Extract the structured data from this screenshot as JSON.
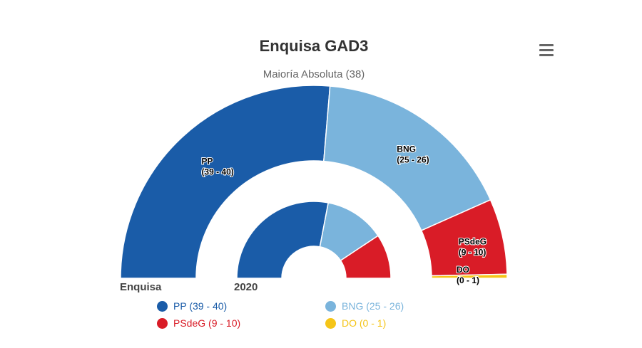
{
  "chart_data": {
    "type": "semicircle-parliament",
    "title": "Enquisa GAD3",
    "subtitle": "Maioría Absoluta (38)",
    "rings": [
      {
        "name": "Enquisa",
        "series": [
          {
            "name": "PP",
            "label": "(39 - 40)",
            "value": 39.5,
            "color": "#1a5ca8"
          },
          {
            "name": "BNG",
            "label": "(25 - 26)",
            "value": 25.5,
            "color": "#7ab4dc"
          },
          {
            "name": "PSdeG",
            "label": "(9 - 10)",
            "value": 9.5,
            "color": "#d91c27"
          },
          {
            "name": "DO",
            "label": "(0 - 1)",
            "value": 0.5,
            "color": "#f5c518"
          }
        ]
      },
      {
        "name": "2020",
        "series": [
          {
            "name": "PP",
            "value": 42,
            "color": "#1a5ca8"
          },
          {
            "name": "BNG",
            "value": 19,
            "color": "#7ab4dc"
          },
          {
            "name": "PSdeG",
            "value": 14,
            "color": "#d91c27"
          },
          {
            "name": "DO",
            "value": 0,
            "color": "#f5c518"
          }
        ]
      }
    ],
    "legend": [
      {
        "label": "PP (39 - 40)",
        "color": "#1a5ca8"
      },
      {
        "label": "BNG (25 - 26)",
        "color": "#7ab4dc"
      },
      {
        "label": "PSdeG (9 - 10)",
        "color": "#d91c27"
      },
      {
        "label": "DO (0 - 1)",
        "color": "#f5c518"
      }
    ],
    "legend_position": "bottom"
  },
  "menu": {
    "icon": "hamburger-menu-icon"
  }
}
